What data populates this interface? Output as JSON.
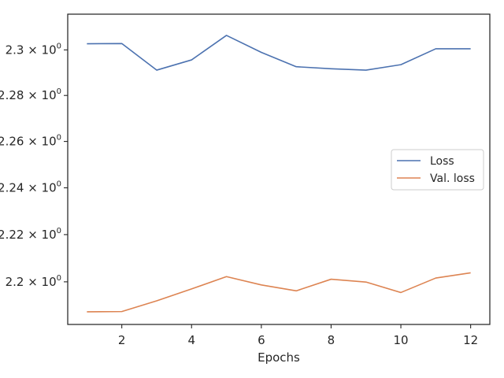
{
  "chart_data": {
    "type": "line",
    "title": "",
    "xlabel": "Epochs",
    "ylabel": "",
    "x": [
      1,
      2,
      3,
      4,
      5,
      6,
      7,
      8,
      9,
      10,
      11,
      12
    ],
    "series": [
      {
        "name": "Loss",
        "color": "#4c72b0",
        "values": [
          2.3027,
          2.3028,
          2.2911,
          2.2956,
          2.3064,
          2.2989,
          2.2926,
          2.2917,
          2.2911,
          2.2935,
          2.3005,
          2.3005
        ]
      },
      {
        "name": "Val. loss",
        "color": "#dd8452",
        "values": [
          2.1874,
          2.1875,
          2.192,
          2.197,
          2.2022,
          2.1987,
          2.1962,
          2.2011,
          2.1999,
          2.1955,
          2.2016,
          2.2038
        ]
      }
    ],
    "xlim": [
      0.45,
      12.55
    ],
    "ylim": [
      2.1821,
      2.3158
    ],
    "xticks": [
      2,
      4,
      6,
      8,
      10,
      12
    ],
    "yticks": [
      {
        "value": 2.3,
        "mantissa": "2.3",
        "exp": "0"
      },
      {
        "value": 2.28,
        "mantissa": "2.28",
        "exp": "0"
      },
      {
        "value": 2.26,
        "mantissa": "2.26",
        "exp": "0"
      },
      {
        "value": 2.24,
        "mantissa": "2.24",
        "exp": "0"
      },
      {
        "value": 2.22,
        "mantissa": "2.22",
        "exp": "0"
      },
      {
        "value": 2.2,
        "mantissa": "2.2",
        "exp": "0"
      }
    ],
    "yscale": "log",
    "grid": false,
    "legend_position": "center-right"
  }
}
